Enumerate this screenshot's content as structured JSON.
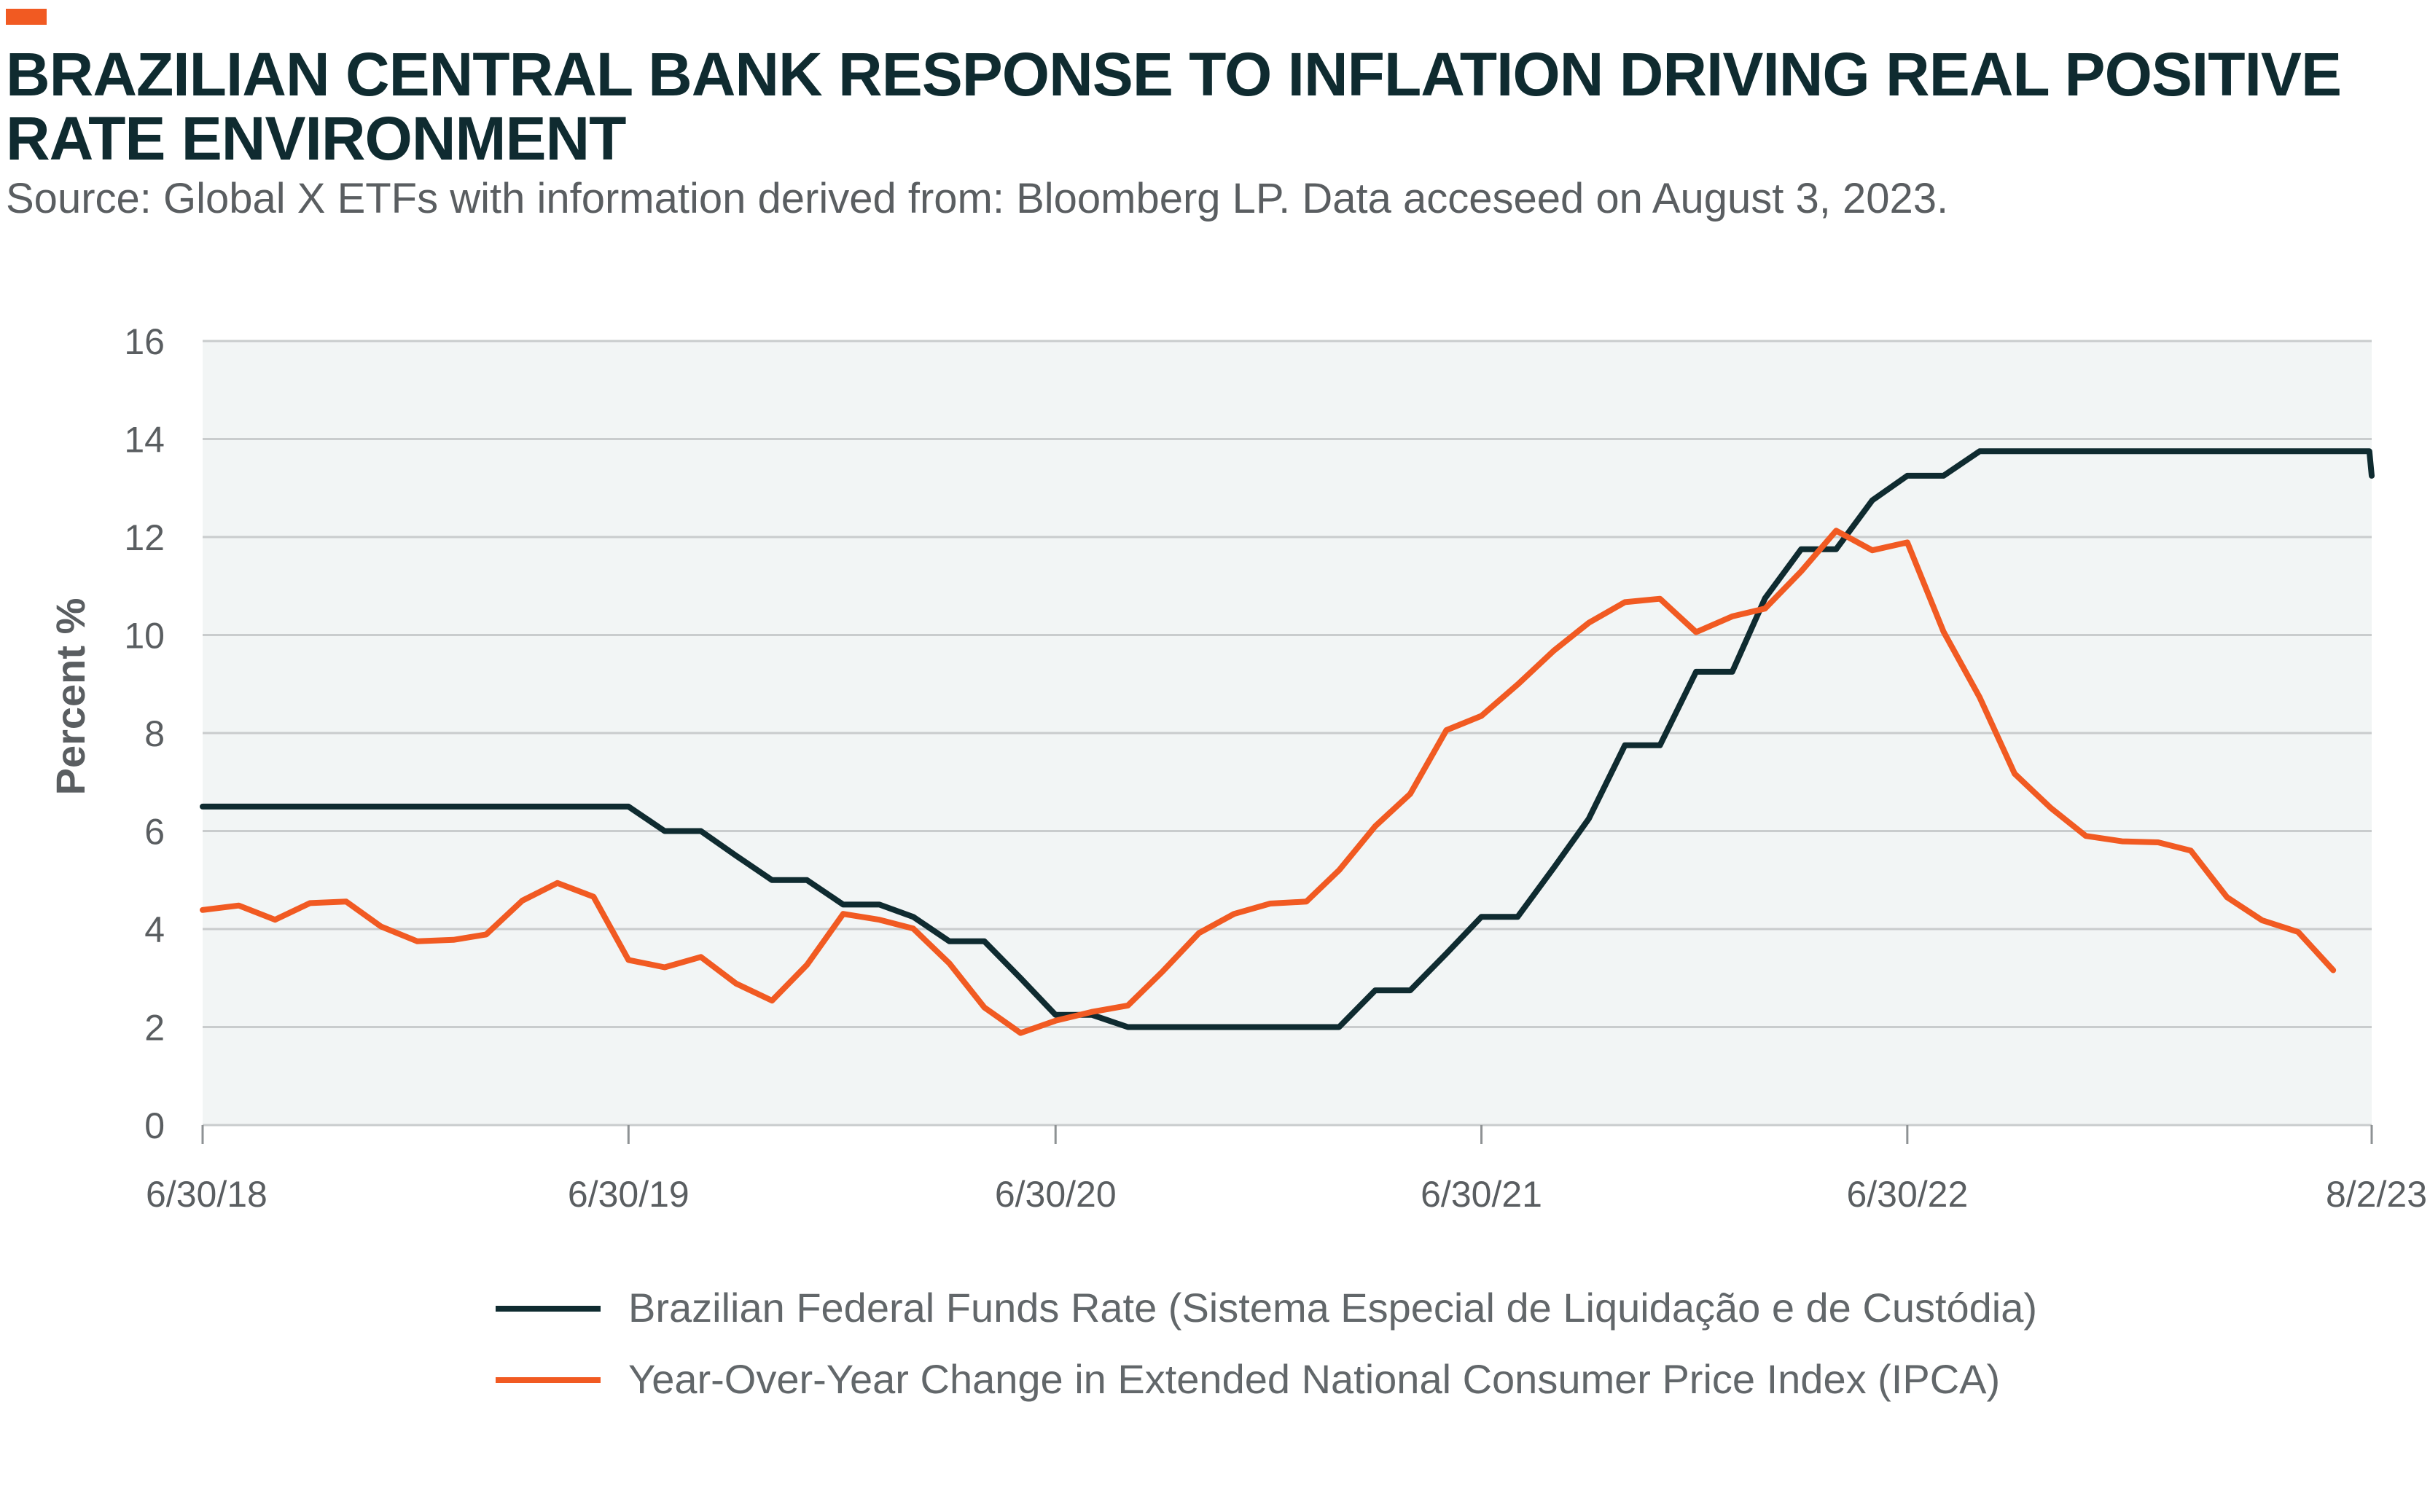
{
  "header": {
    "title": "BRAZILIAN CENTRAL BANK RESPONSE TO INFLATION DRIVING REAL POSITIVE RATE ENVIRONMENT",
    "source": "Source: Global X ETFs with information derived from: Bloomberg LP. Data acceseed on August 3, 2023."
  },
  "colors": {
    "accent": "#F15A22",
    "title": "#0F2B30",
    "plot_background": "#F2F5F5",
    "gridline": "#C9CCCD",
    "axis_text": "#5A5E61"
  },
  "chart_data": {
    "type": "line",
    "title": "BRAZILIAN CENTRAL BANK RESPONSE TO INFLATION DRIVING REAL POSITIVE RATE ENVIRONMENT",
    "subtitle": "Source: Global X ETFs with information derived from: Bloomberg LP. Data acceseed on August 3, 2023.",
    "xlabel": "",
    "ylabel": "Percent %",
    "ylim": [
      0,
      16
    ],
    "yticks": [
      0,
      2,
      4,
      6,
      8,
      10,
      12,
      14,
      16
    ],
    "xlim": [
      "2018-06-30",
      "2023-08-02"
    ],
    "xticks": [
      {
        "date": "2018-06-30",
        "label": "6/30/18"
      },
      {
        "date": "2019-06-30",
        "label": "6/30/19"
      },
      {
        "date": "2020-06-30",
        "label": "6/30/20"
      },
      {
        "date": "2021-06-30",
        "label": "6/30/21"
      },
      {
        "date": "2022-06-30",
        "label": "6/30/22"
      },
      {
        "date": "2023-08-02",
        "label": "8/2/23"
      }
    ],
    "grid": true,
    "legend_position": "bottom",
    "series": [
      {
        "name": "Brazilian Federal Funds Rate (Sistema Especial de Liquidação e de Custódia)",
        "color": "#0F2B30",
        "points": [
          [
            "2018-06-30",
            6.5
          ],
          [
            "2019-06-30",
            6.5
          ],
          [
            "2019-07-31",
            6.0
          ],
          [
            "2019-08-31",
            6.0
          ],
          [
            "2019-09-30",
            5.5
          ],
          [
            "2019-10-31",
            5.0
          ],
          [
            "2019-11-30",
            5.0
          ],
          [
            "2019-12-31",
            4.5
          ],
          [
            "2020-01-31",
            4.5
          ],
          [
            "2020-02-29",
            4.25
          ],
          [
            "2020-03-31",
            3.75
          ],
          [
            "2020-04-30",
            3.75
          ],
          [
            "2020-05-31",
            3.0
          ],
          [
            "2020-06-30",
            2.25
          ],
          [
            "2020-07-31",
            2.25
          ],
          [
            "2020-08-31",
            2.0
          ],
          [
            "2021-02-28",
            2.0
          ],
          [
            "2021-03-31",
            2.75
          ],
          [
            "2021-04-30",
            2.75
          ],
          [
            "2021-05-31",
            3.5
          ],
          [
            "2021-06-30",
            4.25
          ],
          [
            "2021-07-31",
            4.25
          ],
          [
            "2021-08-31",
            5.25
          ],
          [
            "2021-09-30",
            6.25
          ],
          [
            "2021-10-31",
            7.75
          ],
          [
            "2021-11-30",
            7.75
          ],
          [
            "2021-12-31",
            9.25
          ],
          [
            "2022-01-31",
            9.25
          ],
          [
            "2022-02-28",
            10.75
          ],
          [
            "2022-03-31",
            11.75
          ],
          [
            "2022-04-30",
            11.75
          ],
          [
            "2022-05-31",
            12.75
          ],
          [
            "2022-06-30",
            13.25
          ],
          [
            "2022-07-31",
            13.25
          ],
          [
            "2022-08-31",
            13.75
          ],
          [
            "2023-07-31",
            13.75
          ],
          [
            "2023-08-02",
            13.25
          ]
        ]
      },
      {
        "name": "Year-Over-Year Change in Extended National Consumer Price Index (IPCA)",
        "color": "#F15A22",
        "points": [
          [
            "2018-06-30",
            4.39
          ],
          [
            "2018-07-31",
            4.48
          ],
          [
            "2018-08-31",
            4.19
          ],
          [
            "2018-09-30",
            4.53
          ],
          [
            "2018-10-31",
            4.56
          ],
          [
            "2018-11-30",
            4.05
          ],
          [
            "2018-12-31",
            3.75
          ],
          [
            "2019-01-31",
            3.78
          ],
          [
            "2019-02-28",
            3.89
          ],
          [
            "2019-03-31",
            4.58
          ],
          [
            "2019-04-30",
            4.94
          ],
          [
            "2019-05-31",
            4.66
          ],
          [
            "2019-06-30",
            3.37
          ],
          [
            "2019-07-31",
            3.22
          ],
          [
            "2019-08-31",
            3.43
          ],
          [
            "2019-09-30",
            2.89
          ],
          [
            "2019-10-31",
            2.54
          ],
          [
            "2019-11-30",
            3.27
          ],
          [
            "2019-12-31",
            4.31
          ],
          [
            "2020-01-31",
            4.19
          ],
          [
            "2020-02-29",
            4.01
          ],
          [
            "2020-03-31",
            3.3
          ],
          [
            "2020-04-30",
            2.4
          ],
          [
            "2020-05-31",
            1.88
          ],
          [
            "2020-06-30",
            2.13
          ],
          [
            "2020-07-31",
            2.31
          ],
          [
            "2020-08-31",
            2.44
          ],
          [
            "2020-09-30",
            3.14
          ],
          [
            "2020-10-31",
            3.92
          ],
          [
            "2020-11-30",
            4.31
          ],
          [
            "2020-12-31",
            4.52
          ],
          [
            "2021-01-31",
            4.56
          ],
          [
            "2021-02-28",
            5.2
          ],
          [
            "2021-03-31",
            6.1
          ],
          [
            "2021-04-30",
            6.76
          ],
          [
            "2021-05-31",
            8.06
          ],
          [
            "2021-06-30",
            8.35
          ],
          [
            "2021-07-31",
            8.99
          ],
          [
            "2021-08-31",
            9.68
          ],
          [
            "2021-09-30",
            10.25
          ],
          [
            "2021-10-31",
            10.67
          ],
          [
            "2021-11-30",
            10.74
          ],
          [
            "2021-12-31",
            10.06
          ],
          [
            "2022-01-31",
            10.38
          ],
          [
            "2022-02-28",
            10.54
          ],
          [
            "2022-03-31",
            11.3
          ],
          [
            "2022-04-30",
            12.13
          ],
          [
            "2022-05-31",
            11.73
          ],
          [
            "2022-06-30",
            11.89
          ],
          [
            "2022-07-31",
            10.07
          ],
          [
            "2022-08-31",
            8.73
          ],
          [
            "2022-09-30",
            7.17
          ],
          [
            "2022-10-31",
            6.47
          ],
          [
            "2022-11-30",
            5.9
          ],
          [
            "2022-12-31",
            5.79
          ],
          [
            "2023-01-31",
            5.77
          ],
          [
            "2023-02-28",
            5.6
          ],
          [
            "2023-03-31",
            4.65
          ],
          [
            "2023-04-30",
            4.18
          ],
          [
            "2023-05-31",
            3.94
          ],
          [
            "2023-06-30",
            3.16
          ]
        ]
      }
    ]
  }
}
